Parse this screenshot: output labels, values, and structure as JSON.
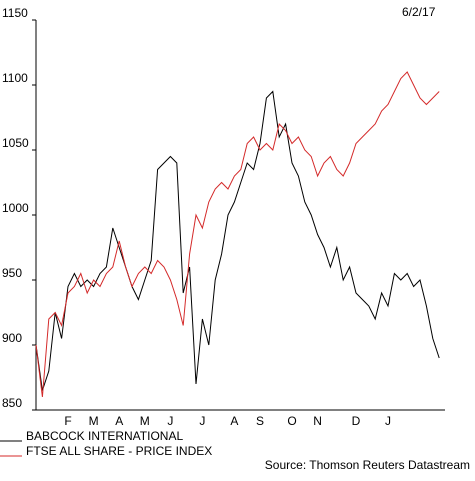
{
  "date": "6/2/17",
  "source": "Source: Thomson Reuters Datastream",
  "chart_data": {
    "type": "line",
    "categories": [
      null,
      null,
      null,
      null,
      null,
      "F",
      null,
      null,
      null,
      "M",
      null,
      null,
      null,
      "A",
      null,
      null,
      null,
      "M",
      null,
      null,
      null,
      "J",
      null,
      null,
      null,
      null,
      "J",
      null,
      null,
      null,
      null,
      "A",
      null,
      null,
      null,
      "S",
      null,
      null,
      null,
      null,
      "O",
      null,
      null,
      null,
      "N",
      null,
      null,
      null,
      null,
      null,
      "D",
      null,
      null,
      null,
      null,
      "J",
      null,
      null,
      null,
      null,
      null,
      null,
      null,
      null
    ],
    "series": [
      {
        "name": "BABCOCK INTERNATIONAL",
        "color": "#000000",
        "values": [
          900,
          865,
          880,
          925,
          905,
          945,
          955,
          945,
          950,
          945,
          955,
          960,
          990,
          975,
          960,
          945,
          935,
          950,
          965,
          1035,
          1040,
          1045,
          1040,
          940,
          960,
          870,
          920,
          900,
          950,
          970,
          1000,
          1010,
          1025,
          1040,
          1035,
          1055,
          1090,
          1095,
          1060,
          1070,
          1040,
          1030,
          1010,
          1000,
          985,
          975,
          960,
          975,
          950,
          960,
          940,
          935,
          930,
          920,
          940,
          930,
          955,
          950,
          955,
          945,
          950,
          930,
          905,
          890
        ]
      },
      {
        "name": "FTSE ALL SHARE - PRICE INDEX",
        "color": "#d42a2a",
        "values": [
          900,
          860,
          920,
          925,
          915,
          940,
          945,
          955,
          940,
          950,
          945,
          955,
          960,
          980,
          960,
          945,
          955,
          960,
          955,
          965,
          960,
          950,
          935,
          915,
          970,
          1000,
          990,
          1010,
          1020,
          1025,
          1020,
          1030,
          1035,
          1055,
          1060,
          1050,
          1055,
          1050,
          1070,
          1065,
          1055,
          1060,
          1050,
          1045,
          1030,
          1040,
          1045,
          1035,
          1030,
          1040,
          1055,
          1060,
          1065,
          1070,
          1080,
          1085,
          1095,
          1105,
          1110,
          1100,
          1090,
          1085,
          1090,
          1095
        ]
      }
    ],
    "ylim": [
      850,
      1150
    ],
    "yticks": [
      850,
      900,
      950,
      1000,
      1050,
      1100,
      1150
    ]
  }
}
